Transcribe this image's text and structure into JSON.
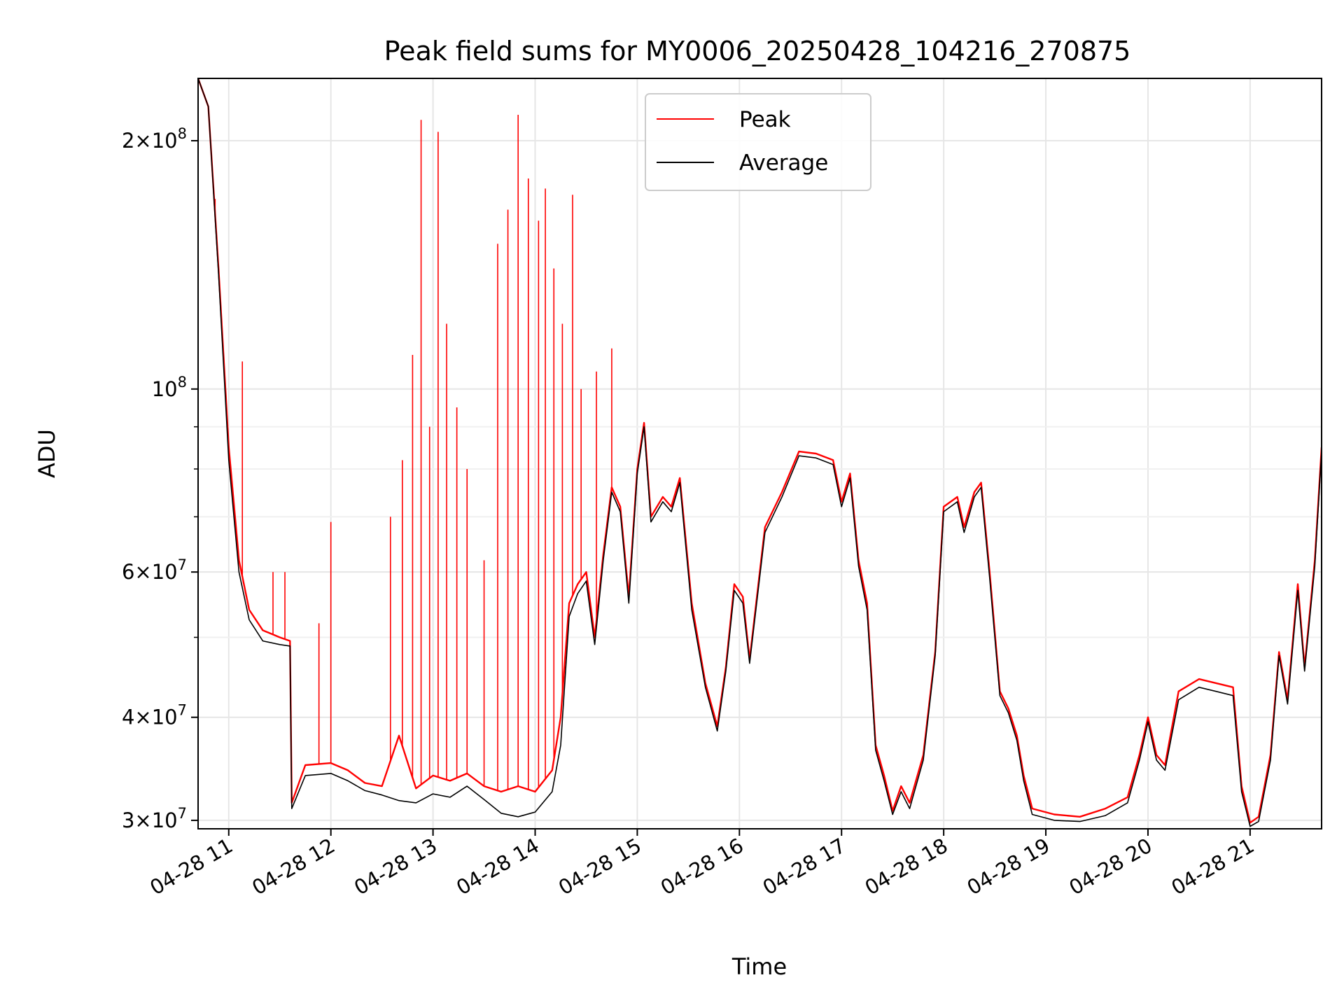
{
  "chart_data": {
    "type": "line",
    "title": "Peak field sums for MY0006_20250428_104216_270875",
    "xlabel": "Time",
    "ylabel": "ADU",
    "x_axis": {
      "kind": "datetime",
      "range": [
        "2025-04-28 10:42",
        "2025-04-28 21:42"
      ],
      "tick_values": [
        "2025-04-28 11:00",
        "2025-04-28 12:00",
        "2025-04-28 13:00",
        "2025-04-28 14:00",
        "2025-04-28 15:00",
        "2025-04-28 16:00",
        "2025-04-28 17:00",
        "2025-04-28 18:00",
        "2025-04-28 19:00",
        "2025-04-28 20:00",
        "2025-04-28 21:00"
      ],
      "tick_labels": [
        "04-28 11",
        "04-28 12",
        "04-28 13",
        "04-28 14",
        "04-28 15",
        "04-28 16",
        "04-28 17",
        "04-28 18",
        "04-28 19",
        "04-28 20",
        "04-28 21"
      ]
    },
    "y_axis": {
      "scale": "log",
      "range": [
        29300000,
        238000000
      ],
      "major_ticks": [
        {
          "value": 30000000,
          "mantissa": "3",
          "exponent": "7"
        },
        {
          "value": 40000000,
          "mantissa": "4",
          "exponent": "7"
        },
        {
          "value": 60000000,
          "mantissa": "6",
          "exponent": "7"
        },
        {
          "value": 100000000,
          "mantissa": "",
          "exponent": "8"
        },
        {
          "value": 200000000,
          "mantissa": "2",
          "exponent": "8"
        }
      ],
      "minor_ticks": [
        50000000,
        70000000,
        80000000,
        90000000
      ]
    },
    "grid": true,
    "legend": {
      "location": "upper-center"
    },
    "series": [
      {
        "name": "Peak",
        "color": "#ff0000",
        "points": [
          [
            "2025-04-28 10:42",
            238000000
          ],
          [
            "2025-04-28 10:48",
            220000000
          ],
          [
            "2025-04-28 10:54",
            140000000
          ],
          [
            "2025-04-28 11:00",
            85000000
          ],
          [
            "2025-04-28 11:06",
            62000000
          ],
          [
            "2025-04-28 11:12",
            54000000
          ],
          [
            "2025-04-28 11:20",
            51000000
          ],
          [
            "2025-04-28 11:30",
            50000000
          ],
          [
            "2025-04-28 11:36",
            49500000
          ],
          [
            "2025-04-28 11:37",
            31500000
          ],
          [
            "2025-04-28 11:45",
            35000000
          ],
          [
            "2025-04-28 12:00",
            35200000
          ],
          [
            "2025-04-28 12:10",
            34500000
          ],
          [
            "2025-04-28 12:20",
            33300000
          ],
          [
            "2025-04-28 12:30",
            33000000
          ],
          [
            "2025-04-28 12:40",
            38000000
          ],
          [
            "2025-04-28 12:50",
            32800000
          ],
          [
            "2025-04-28 13:00",
            34000000
          ],
          [
            "2025-04-28 13:10",
            33500000
          ],
          [
            "2025-04-28 13:20",
            34200000
          ],
          [
            "2025-04-28 13:30",
            33000000
          ],
          [
            "2025-04-28 13:40",
            32500000
          ],
          [
            "2025-04-28 13:50",
            33000000
          ],
          [
            "2025-04-28 14:00",
            32500000
          ],
          [
            "2025-04-28 14:10",
            34500000
          ],
          [
            "2025-04-28 14:15",
            40000000
          ],
          [
            "2025-04-28 14:20",
            55000000
          ],
          [
            "2025-04-28 14:25",
            58000000
          ],
          [
            "2025-04-28 14:30",
            60000000
          ],
          [
            "2025-04-28 14:35",
            50000000
          ],
          [
            "2025-04-28 14:40",
            63000000
          ],
          [
            "2025-04-28 14:45",
            76000000
          ],
          [
            "2025-04-28 14:50",
            72000000
          ],
          [
            "2025-04-28 14:55",
            56000000
          ],
          [
            "2025-04-28 15:00",
            80000000
          ],
          [
            "2025-04-28 15:04",
            91000000
          ],
          [
            "2025-04-28 15:08",
            70000000
          ],
          [
            "2025-04-28 15:15",
            74000000
          ],
          [
            "2025-04-28 15:20",
            72000000
          ],
          [
            "2025-04-28 15:25",
            78000000
          ],
          [
            "2025-04-28 15:32",
            55000000
          ],
          [
            "2025-04-28 15:40",
            44000000
          ],
          [
            "2025-04-28 15:47",
            39000000
          ],
          [
            "2025-04-28 15:52",
            46000000
          ],
          [
            "2025-04-28 15:57",
            58000000
          ],
          [
            "2025-04-28 16:02",
            56000000
          ],
          [
            "2025-04-28 16:06",
            47000000
          ],
          [
            "2025-04-28 16:15",
            68000000
          ],
          [
            "2025-04-28 16:25",
            75000000
          ],
          [
            "2025-04-28 16:35",
            84000000
          ],
          [
            "2025-04-28 16:45",
            83500000
          ],
          [
            "2025-04-28 16:55",
            82000000
          ],
          [
            "2025-04-28 17:00",
            73000000
          ],
          [
            "2025-04-28 17:05",
            79000000
          ],
          [
            "2025-04-28 17:10",
            62000000
          ],
          [
            "2025-04-28 17:15",
            55000000
          ],
          [
            "2025-04-28 17:20",
            37000000
          ],
          [
            "2025-04-28 17:25",
            34000000
          ],
          [
            "2025-04-28 17:30",
            30800000
          ],
          [
            "2025-04-28 17:35",
            33000000
          ],
          [
            "2025-04-28 17:40",
            31500000
          ],
          [
            "2025-04-28 17:48",
            36000000
          ],
          [
            "2025-04-28 17:55",
            48000000
          ],
          [
            "2025-04-28 18:00",
            72000000
          ],
          [
            "2025-04-28 18:08",
            74000000
          ],
          [
            "2025-04-28 18:12",
            68000000
          ],
          [
            "2025-04-28 18:18",
            75000000
          ],
          [
            "2025-04-28 18:22",
            77000000
          ],
          [
            "2025-04-28 18:27",
            60000000
          ],
          [
            "2025-04-28 18:33",
            43000000
          ],
          [
            "2025-04-28 18:38",
            41000000
          ],
          [
            "2025-04-28 18:43",
            38000000
          ],
          [
            "2025-04-28 18:47",
            34000000
          ],
          [
            "2025-04-28 18:52",
            31000000
          ],
          [
            "2025-04-28 19:05",
            30500000
          ],
          [
            "2025-04-28 19:20",
            30300000
          ],
          [
            "2025-04-28 19:35",
            31000000
          ],
          [
            "2025-04-28 19:48",
            32000000
          ],
          [
            "2025-04-28 19:55",
            36000000
          ],
          [
            "2025-04-28 20:00",
            40000000
          ],
          [
            "2025-04-28 20:05",
            36000000
          ],
          [
            "2025-04-28 20:10",
            35000000
          ],
          [
            "2025-04-28 20:18",
            43000000
          ],
          [
            "2025-04-28 20:30",
            44500000
          ],
          [
            "2025-04-28 20:40",
            44000000
          ],
          [
            "2025-04-28 20:50",
            43500000
          ],
          [
            "2025-04-28 20:55",
            33000000
          ],
          [
            "2025-04-28 21:00",
            29800000
          ],
          [
            "2025-04-28 21:05",
            30300000
          ],
          [
            "2025-04-28 21:12",
            36000000
          ],
          [
            "2025-04-28 21:17",
            48000000
          ],
          [
            "2025-04-28 21:22",
            42000000
          ],
          [
            "2025-04-28 21:28",
            58000000
          ],
          [
            "2025-04-28 21:32",
            46000000
          ],
          [
            "2025-04-28 21:38",
            62000000
          ],
          [
            "2025-04-28 21:42",
            85000000
          ]
        ],
        "spikes": [
          [
            "2025-04-28 10:52",
            170000000
          ],
          [
            "2025-04-28 11:08",
            108000000
          ],
          [
            "2025-04-28 11:26",
            60000000
          ],
          [
            "2025-04-28 11:33",
            60000000
          ],
          [
            "2025-04-28 11:53",
            52000000
          ],
          [
            "2025-04-28 12:00",
            69000000
          ],
          [
            "2025-04-28 12:35",
            70000000
          ],
          [
            "2025-04-28 12:42",
            82000000
          ],
          [
            "2025-04-28 12:48",
            110000000
          ],
          [
            "2025-04-28 12:53",
            212000000
          ],
          [
            "2025-04-28 12:58",
            90000000
          ],
          [
            "2025-04-28 13:03",
            205000000
          ],
          [
            "2025-04-28 13:08",
            120000000
          ],
          [
            "2025-04-28 13:14",
            95000000
          ],
          [
            "2025-04-28 13:20",
            80000000
          ],
          [
            "2025-04-28 13:30",
            62000000
          ],
          [
            "2025-04-28 13:38",
            150000000
          ],
          [
            "2025-04-28 13:44",
            165000000
          ],
          [
            "2025-04-28 13:50",
            215000000
          ],
          [
            "2025-04-28 13:56",
            180000000
          ],
          [
            "2025-04-28 14:02",
            160000000
          ],
          [
            "2025-04-28 14:06",
            175000000
          ],
          [
            "2025-04-28 14:11",
            140000000
          ],
          [
            "2025-04-28 14:16",
            120000000
          ],
          [
            "2025-04-28 14:22",
            172000000
          ],
          [
            "2025-04-28 14:27",
            100000000
          ],
          [
            "2025-04-28 14:36",
            105000000
          ],
          [
            "2025-04-28 14:45",
            112000000
          ]
        ]
      },
      {
        "name": "Average",
        "color": "#000000",
        "points": [
          [
            "2025-04-28 10:42",
            238000000
          ],
          [
            "2025-04-28 10:48",
            220000000
          ],
          [
            "2025-04-28 10:54",
            138000000
          ],
          [
            "2025-04-28 11:00",
            82000000
          ],
          [
            "2025-04-28 11:06",
            60000000
          ],
          [
            "2025-04-28 11:12",
            52500000
          ],
          [
            "2025-04-28 11:20",
            49500000
          ],
          [
            "2025-04-28 11:30",
            49000000
          ],
          [
            "2025-04-28 11:36",
            48800000
          ],
          [
            "2025-04-28 11:37",
            31000000
          ],
          [
            "2025-04-28 11:45",
            34000000
          ],
          [
            "2025-04-28 12:00",
            34200000
          ],
          [
            "2025-04-28 12:10",
            33500000
          ],
          [
            "2025-04-28 12:20",
            32600000
          ],
          [
            "2025-04-28 12:30",
            32200000
          ],
          [
            "2025-04-28 12:40",
            31700000
          ],
          [
            "2025-04-28 12:50",
            31500000
          ],
          [
            "2025-04-28 13:00",
            32300000
          ],
          [
            "2025-04-28 13:10",
            32000000
          ],
          [
            "2025-04-28 13:20",
            33000000
          ],
          [
            "2025-04-28 13:30",
            31800000
          ],
          [
            "2025-04-28 13:40",
            30600000
          ],
          [
            "2025-04-28 13:50",
            30300000
          ],
          [
            "2025-04-28 14:00",
            30700000
          ],
          [
            "2025-04-28 14:10",
            32500000
          ],
          [
            "2025-04-28 14:15",
            37000000
          ],
          [
            "2025-04-28 14:20",
            53000000
          ],
          [
            "2025-04-28 14:25",
            56500000
          ],
          [
            "2025-04-28 14:30",
            58500000
          ],
          [
            "2025-04-28 14:35",
            49000000
          ],
          [
            "2025-04-28 14:40",
            62000000
          ],
          [
            "2025-04-28 14:45",
            75000000
          ],
          [
            "2025-04-28 14:50",
            71000000
          ],
          [
            "2025-04-28 14:55",
            55000000
          ],
          [
            "2025-04-28 15:00",
            79000000
          ],
          [
            "2025-04-28 15:04",
            90000000
          ],
          [
            "2025-04-28 15:08",
            69000000
          ],
          [
            "2025-04-28 15:15",
            73000000
          ],
          [
            "2025-04-28 15:20",
            71000000
          ],
          [
            "2025-04-28 15:25",
            77000000
          ],
          [
            "2025-04-28 15:32",
            54000000
          ],
          [
            "2025-04-28 15:40",
            43500000
          ],
          [
            "2025-04-28 15:47",
            38500000
          ],
          [
            "2025-04-28 15:52",
            45500000
          ],
          [
            "2025-04-28 15:57",
            57000000
          ],
          [
            "2025-04-28 16:02",
            55000000
          ],
          [
            "2025-04-28 16:06",
            46500000
          ],
          [
            "2025-04-28 16:15",
            67000000
          ],
          [
            "2025-04-28 16:25",
            74000000
          ],
          [
            "2025-04-28 16:35",
            83000000
          ],
          [
            "2025-04-28 16:45",
            82500000
          ],
          [
            "2025-04-28 16:55",
            81000000
          ],
          [
            "2025-04-28 17:00",
            72000000
          ],
          [
            "2025-04-28 17:05",
            78000000
          ],
          [
            "2025-04-28 17:10",
            61000000
          ],
          [
            "2025-04-28 17:15",
            54000000
          ],
          [
            "2025-04-28 17:20",
            36500000
          ],
          [
            "2025-04-28 17:25",
            33500000
          ],
          [
            "2025-04-28 17:30",
            30500000
          ],
          [
            "2025-04-28 17:35",
            32500000
          ],
          [
            "2025-04-28 17:40",
            31000000
          ],
          [
            "2025-04-28 17:48",
            35500000
          ],
          [
            "2025-04-28 17:55",
            47500000
          ],
          [
            "2025-04-28 18:00",
            71000000
          ],
          [
            "2025-04-28 18:08",
            73000000
          ],
          [
            "2025-04-28 18:12",
            67000000
          ],
          [
            "2025-04-28 18:18",
            74000000
          ],
          [
            "2025-04-28 18:22",
            76000000
          ],
          [
            "2025-04-28 18:27",
            59000000
          ],
          [
            "2025-04-28 18:33",
            42500000
          ],
          [
            "2025-04-28 18:38",
            40500000
          ],
          [
            "2025-04-28 18:43",
            37500000
          ],
          [
            "2025-04-28 18:47",
            33500000
          ],
          [
            "2025-04-28 18:52",
            30500000
          ],
          [
            "2025-04-28 19:05",
            30000000
          ],
          [
            "2025-04-28 19:20",
            29900000
          ],
          [
            "2025-04-28 19:35",
            30400000
          ],
          [
            "2025-04-28 19:48",
            31500000
          ],
          [
            "2025-04-28 19:55",
            35500000
          ],
          [
            "2025-04-28 20:00",
            39500000
          ],
          [
            "2025-04-28 20:05",
            35500000
          ],
          [
            "2025-04-28 20:10",
            34500000
          ],
          [
            "2025-04-28 20:18",
            42000000
          ],
          [
            "2025-04-28 20:30",
            43500000
          ],
          [
            "2025-04-28 20:40",
            43000000
          ],
          [
            "2025-04-28 20:50",
            42500000
          ],
          [
            "2025-04-28 20:55",
            32500000
          ],
          [
            "2025-04-28 21:00",
            29500000
          ],
          [
            "2025-04-28 21:05",
            29900000
          ],
          [
            "2025-04-28 21:12",
            35500000
          ],
          [
            "2025-04-28 21:17",
            47500000
          ],
          [
            "2025-04-28 21:22",
            41500000
          ],
          [
            "2025-04-28 21:28",
            57000000
          ],
          [
            "2025-04-28 21:32",
            45500000
          ],
          [
            "2025-04-28 21:38",
            61000000
          ],
          [
            "2025-04-28 21:42",
            84000000
          ]
        ]
      }
    ]
  }
}
